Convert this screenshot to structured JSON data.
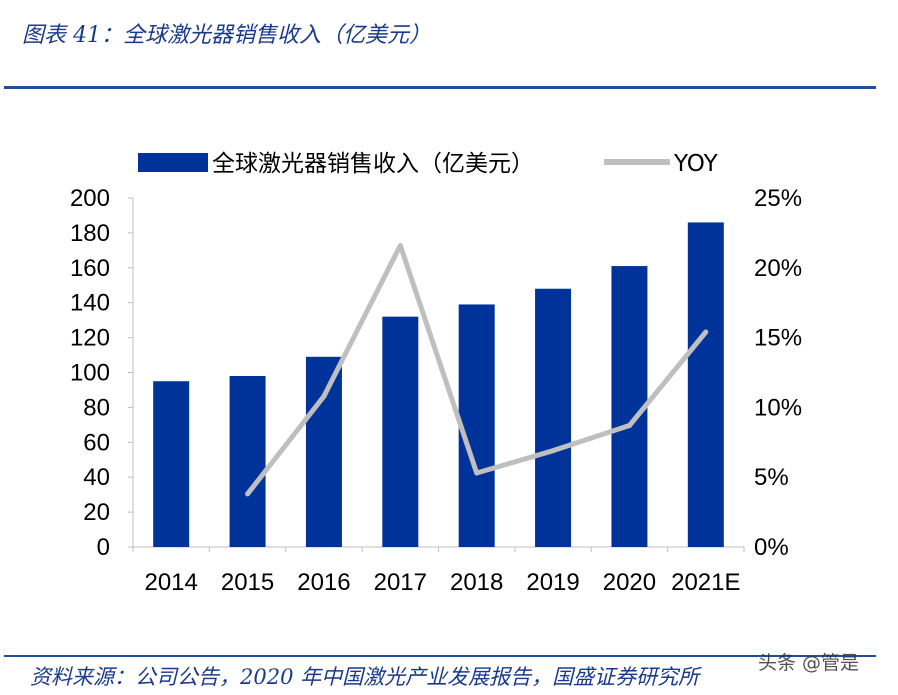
{
  "figure_title": "图表 41：全球激光器销售收入（亿美元）",
  "source_note": "资料来源：公司公告，2020 年中国激光产业发展报告，国盛证券研究所",
  "watermark": "头条 @管是",
  "colors": {
    "bar": "#003399",
    "line": "#bfbfbf",
    "accent": "#1f4e9a"
  },
  "chart_data": {
    "type": "bar",
    "title": "",
    "categories": [
      "2014",
      "2015",
      "2016",
      "2017",
      "2018",
      "2019",
      "2020",
      "2021E"
    ],
    "series": [
      {
        "name": "全球激光器销售收入（亿美元）",
        "type": "bar",
        "axis": "left",
        "values": [
          95,
          98,
          109,
          132,
          139,
          148,
          161,
          186
        ]
      },
      {
        "name": "YOY",
        "type": "line",
        "axis": "right",
        "values": [
          null,
          3.8,
          10.8,
          21.6,
          5.3,
          6.9,
          8.7,
          15.4
        ]
      }
    ],
    "y_left": {
      "ylim": [
        0,
        200
      ],
      "ticks": [
        "0",
        "20",
        "40",
        "60",
        "80",
        "100",
        "120",
        "140",
        "160",
        "180",
        "200"
      ]
    },
    "y_right": {
      "ylim": [
        0,
        25
      ],
      "ticks": [
        "0%",
        "5%",
        "10%",
        "15%",
        "20%",
        "25%"
      ]
    },
    "legend_position": "top",
    "grid": false
  }
}
